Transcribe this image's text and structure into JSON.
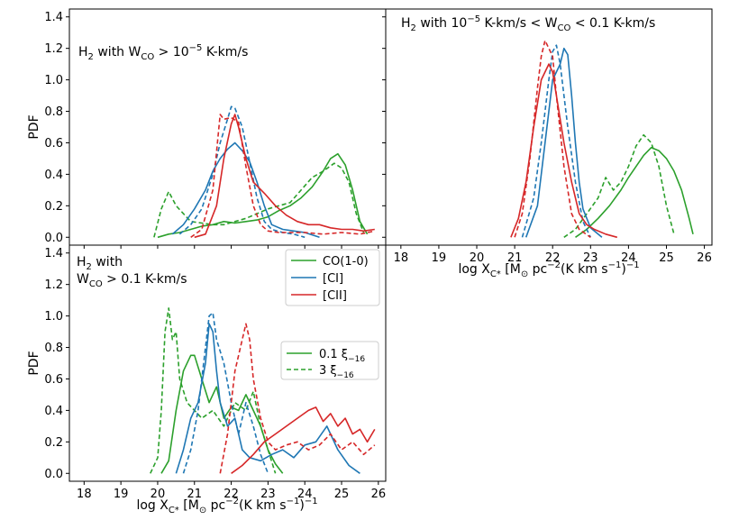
{
  "colors": {
    "co": "#2ca02c",
    "ci": "#1f77b4",
    "cii": "#d62728",
    "axis": "#000000"
  },
  "shared_axis": {
    "ylabel": "PDF",
    "xlabel_prefix": "log X",
    "xlabel_sub": "C*",
    "xlabel_units": " [M",
    "xlabel_sun": "⊙",
    "xlabel_mid": " pc",
    "xlabel_sup1": "−2",
    "xlabel_mid2": "(K km s",
    "xlabel_sup2": "−1",
    "xlabel_end": ")",
    "xlabel_sup3": "−1",
    "xticks": [
      "18",
      "19",
      "20",
      "21",
      "22",
      "23",
      "24",
      "25",
      "26"
    ],
    "yticks": [
      "0.0",
      "0.2",
      "0.4",
      "0.6",
      "0.8",
      "1.0",
      "1.2",
      "1.4"
    ]
  },
  "annotations": {
    "panel1": {
      "prefix": "H",
      "sub": "2",
      "text": " with W",
      "wsub": "CO",
      "rest": " > 10",
      "sup": "−5",
      "units": " K-km/s"
    },
    "panel2": {
      "prefix": "H",
      "sub": "2",
      "text": " with 10",
      "sup": "−5",
      "mid": " K-km/s  < W",
      "wsub": "CO",
      "rest": " < 0.1 K-km/s"
    },
    "panel3": {
      "line1_prefix": "H",
      "line1_sub": "2",
      "line1_text": " with",
      "line2_w": "W",
      "line2_wsub": "CO",
      "line2_rest": " > 0.1 K-km/s"
    }
  },
  "legend_species": [
    {
      "label": "CO(1-0)",
      "color": "#2ca02c"
    },
    {
      "label": "[CI]",
      "color": "#1f77b4"
    },
    {
      "label": "[CII]",
      "color": "#d62728"
    }
  ],
  "legend_xi": [
    {
      "label": "0.1 ξ",
      "sub": "−16",
      "dash": "solid"
    },
    {
      "label": "3 ξ",
      "sub": "−16",
      "dash": "dashed"
    }
  ],
  "chart_data": [
    {
      "type": "line",
      "panel": "top-left",
      "title": "H2 with W_CO > 10^-5 K-km/s",
      "xlabel": "",
      "ylabel": "PDF",
      "xlim": [
        17.6,
        26.2
      ],
      "ylim": [
        -0.05,
        1.45
      ],
      "series": [
        {
          "name": "CO(1-0) 0.1 ξ-16",
          "color": "#2ca02c",
          "dash": "solid",
          "x": [
            20.0,
            20.3,
            20.6,
            20.9,
            21.2,
            21.5,
            21.8,
            22.1,
            22.4,
            22.7,
            23.0,
            23.3,
            23.6,
            23.9,
            24.2,
            24.5,
            24.7,
            24.9,
            25.1,
            25.3,
            25.5,
            25.7
          ],
          "y": [
            0.0,
            0.02,
            0.03,
            0.05,
            0.07,
            0.08,
            0.1,
            0.09,
            0.1,
            0.11,
            0.13,
            0.17,
            0.2,
            0.25,
            0.32,
            0.42,
            0.5,
            0.53,
            0.46,
            0.3,
            0.1,
            0.02
          ]
        },
        {
          "name": "CO(1-0) 3 ξ-16",
          "color": "#2ca02c",
          "dash": "dashed",
          "x": [
            19.9,
            20.1,
            20.3,
            20.5,
            20.7,
            20.9,
            21.2,
            21.5,
            21.8,
            22.1,
            22.4,
            22.7,
            23.0,
            23.3,
            23.6,
            23.9,
            24.2,
            24.5,
            24.8,
            25.0,
            25.2,
            25.4,
            25.6
          ],
          "y": [
            0.0,
            0.18,
            0.29,
            0.2,
            0.15,
            0.1,
            0.09,
            0.08,
            0.08,
            0.1,
            0.12,
            0.15,
            0.18,
            0.2,
            0.22,
            0.3,
            0.38,
            0.42,
            0.47,
            0.44,
            0.35,
            0.15,
            0.03
          ]
        },
        {
          "name": "[CI] 0.1 ξ-16",
          "color": "#1f77b4",
          "dash": "solid",
          "x": [
            20.4,
            20.7,
            21.0,
            21.3,
            21.5,
            21.7,
            21.9,
            22.1,
            22.3,
            22.5,
            22.7,
            22.9,
            23.1,
            23.4,
            23.7,
            24.0,
            24.4
          ],
          "y": [
            0.02,
            0.08,
            0.18,
            0.3,
            0.42,
            0.5,
            0.56,
            0.6,
            0.55,
            0.48,
            0.35,
            0.2,
            0.08,
            0.05,
            0.04,
            0.03,
            0.0
          ]
        },
        {
          "name": "[CI] 3 ξ-16",
          "color": "#1f77b4",
          "dash": "dashed",
          "x": [
            20.6,
            20.9,
            21.2,
            21.5,
            21.7,
            21.9,
            22.0,
            22.1,
            22.3,
            22.5,
            22.7,
            22.9,
            23.1,
            23.4,
            23.7,
            24.0
          ],
          "y": [
            0.02,
            0.08,
            0.18,
            0.4,
            0.6,
            0.75,
            0.83,
            0.82,
            0.7,
            0.48,
            0.25,
            0.1,
            0.05,
            0.03,
            0.02,
            0.0
          ]
        },
        {
          "name": "[CII] 0.1 ξ-16",
          "color": "#d62728",
          "dash": "solid",
          "x": [
            21.0,
            21.3,
            21.6,
            21.8,
            22.0,
            22.1,
            22.2,
            22.4,
            22.6,
            22.9,
            23.2,
            23.5,
            23.8,
            24.1,
            24.4,
            24.7,
            25.0,
            25.3,
            25.6,
            25.9
          ],
          "y": [
            0.0,
            0.02,
            0.2,
            0.5,
            0.72,
            0.78,
            0.7,
            0.5,
            0.35,
            0.28,
            0.2,
            0.14,
            0.1,
            0.08,
            0.08,
            0.06,
            0.05,
            0.05,
            0.04,
            0.05
          ]
        },
        {
          "name": "[CII] 3 ξ-16",
          "color": "#d62728",
          "dash": "dashed",
          "x": [
            20.9,
            21.2,
            21.5,
            21.7,
            21.8,
            22.0,
            22.2,
            22.4,
            22.6,
            22.8,
            23.0,
            23.3,
            23.6,
            24.0,
            24.5,
            25.0,
            25.5,
            25.9
          ],
          "y": [
            0.0,
            0.05,
            0.3,
            0.78,
            0.75,
            0.76,
            0.73,
            0.45,
            0.2,
            0.08,
            0.04,
            0.03,
            0.03,
            0.03,
            0.02,
            0.03,
            0.02,
            0.04
          ]
        }
      ]
    },
    {
      "type": "line",
      "panel": "top-right",
      "title": "H2 with 10^-5 K-km/s < W_CO < 0.1 K-km/s",
      "xlabel": "log X_C* [M_sun pc^-2 (K km s^-1)^-1]",
      "ylabel": "",
      "xlim": [
        17.6,
        26.2
      ],
      "ylim": [
        -0.05,
        1.45
      ],
      "series": [
        {
          "name": "CO(1-0) 0.1 ξ-16",
          "color": "#2ca02c",
          "dash": "solid",
          "x": [
            22.6,
            22.9,
            23.2,
            23.5,
            23.8,
            24.0,
            24.2,
            24.4,
            24.6,
            24.8,
            25.0,
            25.2,
            25.4,
            25.6,
            25.7
          ],
          "y": [
            0.0,
            0.05,
            0.12,
            0.2,
            0.3,
            0.38,
            0.45,
            0.52,
            0.57,
            0.55,
            0.5,
            0.42,
            0.3,
            0.12,
            0.02
          ]
        },
        {
          "name": "CO(1-0) 3 ξ-16",
          "color": "#2ca02c",
          "dash": "dashed",
          "x": [
            22.3,
            22.6,
            22.9,
            23.2,
            23.4,
            23.6,
            23.8,
            24.0,
            24.2,
            24.4,
            24.6,
            24.8,
            25.0,
            25.2
          ],
          "y": [
            0.0,
            0.05,
            0.15,
            0.25,
            0.38,
            0.3,
            0.35,
            0.45,
            0.58,
            0.65,
            0.6,
            0.45,
            0.2,
            0.02
          ]
        },
        {
          "name": "[CI] 0.1 ξ-16",
          "color": "#1f77b4",
          "dash": "solid",
          "x": [
            21.3,
            21.6,
            21.8,
            22.0,
            22.2,
            22.3,
            22.4,
            22.5,
            22.6,
            22.7,
            22.8,
            23.0,
            23.3
          ],
          "y": [
            0.0,
            0.2,
            0.6,
            1.0,
            1.1,
            1.2,
            1.16,
            0.9,
            0.6,
            0.35,
            0.18,
            0.06,
            0.0
          ]
        },
        {
          "name": "[CI] 3 ξ-16",
          "color": "#1f77b4",
          "dash": "dashed",
          "x": [
            21.2,
            21.5,
            21.7,
            21.9,
            22.0,
            22.1,
            22.2,
            22.3,
            22.4,
            22.6,
            22.8,
            23.0
          ],
          "y": [
            0.0,
            0.25,
            0.6,
            1.0,
            1.18,
            1.22,
            1.1,
            0.9,
            0.7,
            0.35,
            0.1,
            0.0
          ]
        },
        {
          "name": "[CII] 0.1 ξ-16",
          "color": "#d62728",
          "dash": "solid",
          "x": [
            20.9,
            21.1,
            21.3,
            21.5,
            21.7,
            21.9,
            22.0,
            22.1,
            22.3,
            22.5,
            22.7,
            22.9,
            23.1,
            23.4,
            23.7
          ],
          "y": [
            0.0,
            0.12,
            0.35,
            0.7,
            1.0,
            1.1,
            1.05,
            0.9,
            0.6,
            0.35,
            0.15,
            0.08,
            0.05,
            0.02,
            0.0
          ]
        },
        {
          "name": "[CII] 3 ξ-16",
          "color": "#d62728",
          "dash": "dashed",
          "x": [
            21.0,
            21.2,
            21.4,
            21.6,
            21.7,
            21.8,
            21.9,
            22.0,
            22.1,
            22.3,
            22.5,
            22.7,
            23.0
          ],
          "y": [
            0.0,
            0.15,
            0.5,
            0.95,
            1.15,
            1.25,
            1.2,
            1.15,
            0.9,
            0.45,
            0.15,
            0.05,
            0.0
          ]
        }
      ]
    },
    {
      "type": "line",
      "panel": "bottom-left",
      "title": "H2 with W_CO > 0.1 K-km/s",
      "xlabel": "log X_C* [M_sun pc^-2 (K km s^-1)^-1]",
      "ylabel": "PDF",
      "xlim": [
        17.6,
        26.2
      ],
      "ylim": [
        -0.05,
        1.45
      ],
      "series": [
        {
          "name": "CO(1-0) 0.1 ξ-16",
          "color": "#2ca02c",
          "dash": "solid",
          "x": [
            20.1,
            20.3,
            20.5,
            20.7,
            20.9,
            21.0,
            21.2,
            21.4,
            21.6,
            21.8,
            22.0,
            22.2,
            22.4,
            22.6,
            22.8,
            23.0,
            23.2,
            23.4
          ],
          "y": [
            0.0,
            0.08,
            0.4,
            0.65,
            0.75,
            0.75,
            0.6,
            0.45,
            0.55,
            0.35,
            0.42,
            0.4,
            0.5,
            0.4,
            0.3,
            0.15,
            0.06,
            0.0
          ]
        },
        {
          "name": "CO(1-0) 3 ξ-16",
          "color": "#2ca02c",
          "dash": "dashed",
          "x": [
            19.8,
            20.0,
            20.1,
            20.2,
            20.3,
            20.4,
            20.5,
            20.6,
            20.8,
            21.0,
            21.2,
            21.5,
            21.8,
            22.1,
            22.4,
            22.6,
            22.8,
            23.0,
            23.2
          ],
          "y": [
            0.0,
            0.1,
            0.4,
            0.9,
            1.05,
            0.85,
            0.9,
            0.6,
            0.45,
            0.4,
            0.35,
            0.4,
            0.3,
            0.45,
            0.4,
            0.52,
            0.3,
            0.15,
            0.0
          ]
        },
        {
          "name": "[CI] 0.1 ξ-16",
          "color": "#1f77b4",
          "dash": "solid",
          "x": [
            20.5,
            20.7,
            20.9,
            21.1,
            21.3,
            21.4,
            21.5,
            21.6,
            21.7,
            21.9,
            22.1,
            22.3,
            22.5,
            22.8,
            23.1,
            23.4,
            23.7,
            24.0,
            24.3,
            24.6,
            24.9,
            25.2,
            25.5
          ],
          "y": [
            0.0,
            0.15,
            0.35,
            0.45,
            0.7,
            0.95,
            0.9,
            0.65,
            0.45,
            0.3,
            0.35,
            0.15,
            0.1,
            0.08,
            0.12,
            0.15,
            0.1,
            0.18,
            0.2,
            0.3,
            0.15,
            0.05,
            0.0
          ]
        },
        {
          "name": "[CI] 3 ξ-16",
          "color": "#1f77b4",
          "dash": "dashed",
          "x": [
            20.7,
            20.9,
            21.1,
            21.3,
            21.4,
            21.5,
            21.6,
            21.8,
            22.0,
            22.2,
            22.4,
            22.6,
            22.8,
            23.0
          ],
          "y": [
            0.0,
            0.15,
            0.4,
            0.8,
            1.0,
            1.02,
            0.85,
            0.7,
            0.45,
            0.25,
            0.45,
            0.3,
            0.12,
            0.0
          ]
        },
        {
          "name": "[CII] 0.1 ξ-16",
          "color": "#d62728",
          "dash": "solid",
          "x": [
            22.0,
            22.3,
            22.6,
            22.9,
            23.2,
            23.5,
            23.8,
            24.1,
            24.3,
            24.5,
            24.7,
            24.9,
            25.1,
            25.3,
            25.5,
            25.7,
            25.9
          ],
          "y": [
            0.0,
            0.05,
            0.12,
            0.2,
            0.25,
            0.3,
            0.35,
            0.4,
            0.42,
            0.33,
            0.38,
            0.3,
            0.35,
            0.25,
            0.28,
            0.2,
            0.28
          ]
        },
        {
          "name": "[CII] 3 ξ-16",
          "color": "#d62728",
          "dash": "dashed",
          "x": [
            21.7,
            21.9,
            22.1,
            22.3,
            22.4,
            22.5,
            22.6,
            22.8,
            23.0,
            23.2,
            23.5,
            23.8,
            24.1,
            24.4,
            24.7,
            25.0,
            25.3,
            25.6,
            25.9
          ],
          "y": [
            0.0,
            0.25,
            0.65,
            0.85,
            0.95,
            0.85,
            0.6,
            0.35,
            0.2,
            0.15,
            0.18,
            0.2,
            0.15,
            0.18,
            0.25,
            0.15,
            0.2,
            0.12,
            0.18
          ]
        }
      ]
    }
  ]
}
